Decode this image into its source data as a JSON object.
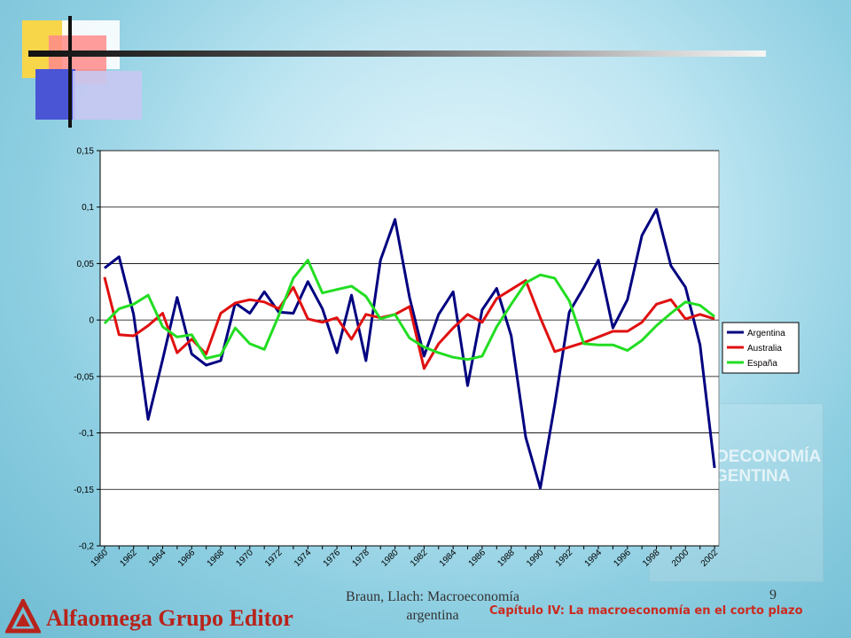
{
  "slide": {
    "footer_author": "Braun, Llach: Macroeconomía argentina",
    "page_number": "9",
    "chapter": "Capítulo IV: La macroeconomía en el corto plazo",
    "publisher": "Alfaomega Grupo Editor",
    "book_cover_text": "MACROECONOMÍA ARGENTINA"
  },
  "chart_data": {
    "type": "line",
    "x": [
      1960,
      1961,
      1962,
      1963,
      1964,
      1965,
      1966,
      1967,
      1968,
      1969,
      1970,
      1971,
      1972,
      1973,
      1974,
      1975,
      1976,
      1977,
      1978,
      1979,
      1980,
      1981,
      1982,
      1983,
      1984,
      1985,
      1986,
      1987,
      1988,
      1989,
      1990,
      1991,
      1992,
      1993,
      1994,
      1995,
      1996,
      1997,
      1998,
      1999,
      2000,
      2001,
      2002
    ],
    "x_tick_labels": [
      "1960",
      "1962",
      "1964",
      "1966",
      "1968",
      "1970",
      "1972",
      "1974",
      "1976",
      "1978",
      "1980",
      "1982",
      "1984",
      "1986",
      "1988",
      "1990",
      "1992",
      "1994",
      "1996",
      "1998",
      "2000",
      "2002"
    ],
    "ylim": [
      -0.2,
      0.15
    ],
    "y_ticks": [
      0.15,
      0.1,
      0.05,
      0,
      -0.05,
      -0.1,
      -0.15,
      -0.2
    ],
    "y_tick_labels": [
      "0,15",
      "0,1",
      "0,05",
      "0",
      "-0,05",
      "-0,1",
      "-0,15",
      "-0,2"
    ],
    "grid": true,
    "legend_position": "right",
    "series": [
      {
        "name": "Argentina",
        "color": "#000080",
        "values": [
          0.046,
          0.056,
          0.005,
          -0.088,
          -0.035,
          0.02,
          -0.03,
          -0.04,
          -0.036,
          0.015,
          0.006,
          0.025,
          0.007,
          0.006,
          0.034,
          0.01,
          -0.029,
          0.022,
          -0.036,
          0.053,
          0.089,
          0.02,
          -0.032,
          0.005,
          0.025,
          -0.058,
          0.009,
          0.028,
          -0.014,
          -0.104,
          -0.149,
          -0.075,
          0.007,
          0.029,
          0.053,
          -0.007,
          0.018,
          0.075,
          0.098,
          0.048,
          0.029,
          -0.022,
          -0.131
        ]
      },
      {
        "name": "Australia",
        "color": "#e01010",
        "values": [
          0.038,
          -0.013,
          -0.014,
          -0.005,
          0.006,
          -0.029,
          -0.017,
          -0.03,
          0.006,
          0.015,
          0.018,
          0.016,
          0.01,
          0.029,
          0.001,
          -0.002,
          0.002,
          -0.017,
          0.005,
          0.002,
          0.005,
          0.012,
          -0.043,
          -0.021,
          -0.007,
          0.005,
          -0.002,
          0.019,
          0.027,
          0.035,
          0.002,
          -0.028,
          -0.024,
          -0.02,
          -0.015,
          -0.01,
          -0.01,
          -0.002,
          0.014,
          0.018,
          0.001,
          0.005,
          0.001
        ]
      },
      {
        "name": "España",
        "color": "#22dd22",
        "values": [
          -0.003,
          0.01,
          0.014,
          0.022,
          -0.006,
          -0.015,
          -0.013,
          -0.034,
          -0.031,
          -0.007,
          -0.021,
          -0.026,
          0.004,
          0.037,
          0.053,
          0.024,
          0.027,
          0.03,
          0.021,
          0.001,
          0.005,
          -0.016,
          -0.024,
          -0.029,
          -0.033,
          -0.035,
          -0.032,
          -0.006,
          0.014,
          0.033,
          0.04,
          0.037,
          0.017,
          -0.021,
          -0.022,
          -0.022,
          -0.027,
          -0.018,
          -0.005,
          0.006,
          0.016,
          0.013,
          0.003
        ]
      }
    ]
  }
}
